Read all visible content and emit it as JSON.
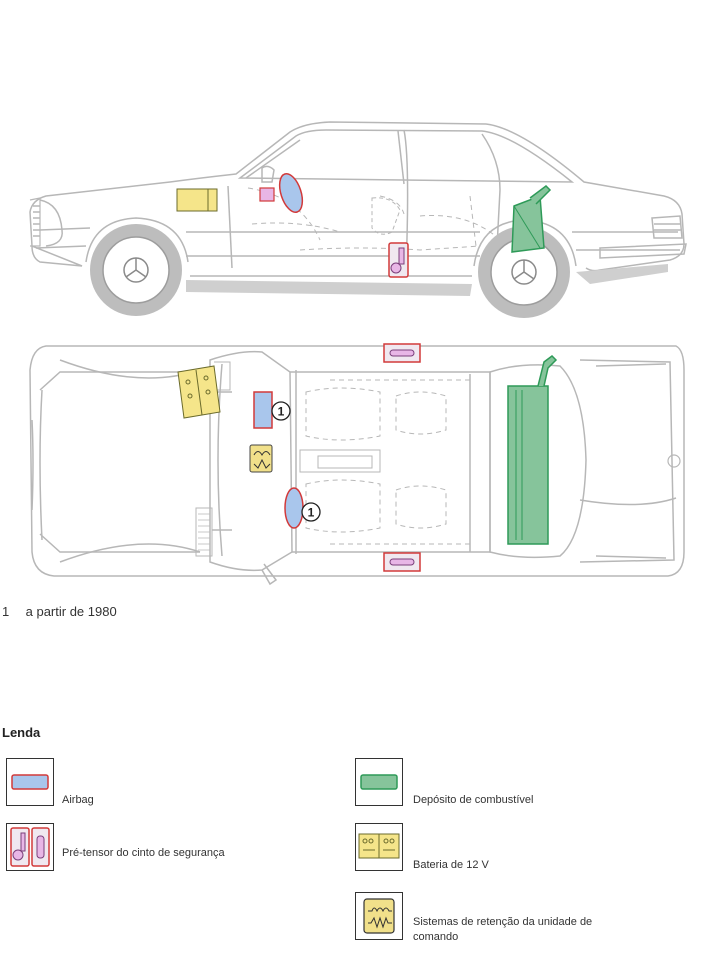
{
  "footnote": {
    "number": "1",
    "text": "a partir de 1980"
  },
  "callout_label": "1",
  "legend": {
    "title": "Lenda",
    "items": [
      {
        "id": "airbag",
        "label": "Airbag"
      },
      {
        "id": "seatbelt",
        "label": "Pré-tensor do cinto de segurança"
      },
      {
        "id": "fuel",
        "label": "Depósito de combustível"
      },
      {
        "id": "battery",
        "label": "Bateria de 12 V"
      },
      {
        "id": "restraint",
        "label": "Sistemas de retenção da unidade de comando"
      }
    ]
  },
  "colors": {
    "outline": "#b7b7b7",
    "airbag_fill": "#a9c6ec",
    "airbag_stroke": "#d23a3a",
    "seatbelt_fill": "#e8b6e6",
    "fuel_fill": "#86c49b",
    "fuel_stroke": "#2e9a58",
    "battery_fill": "#f5e58a",
    "control_fill": "#f1e08a"
  }
}
